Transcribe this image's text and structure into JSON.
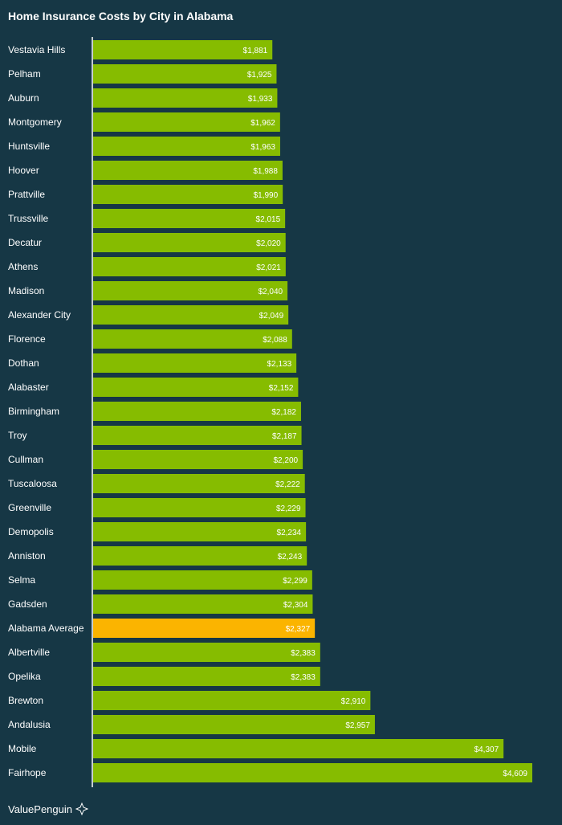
{
  "chart_data": {
    "type": "bar",
    "orientation": "horizontal",
    "title": "Home Insurance Costs by City in Alabama",
    "categories": [
      "Vestavia Hills",
      "Pelham",
      "Auburn",
      "Montgomery",
      "Huntsville",
      "Hoover",
      "Prattville",
      "Trussville",
      "Decatur",
      "Athens",
      "Madison",
      "Alexander City",
      "Florence",
      "Dothan",
      "Alabaster",
      "Birmingham",
      "Troy",
      "Cullman",
      "Tuscaloosa",
      "Greenville",
      "Demopolis",
      "Anniston",
      "Selma",
      "Gadsden",
      "Alabama Average",
      "Albertville",
      "Opelika",
      "Brewton",
      "Andalusia",
      "Mobile",
      "Fairhope"
    ],
    "values": [
      1881,
      1925,
      1933,
      1962,
      1963,
      1988,
      1990,
      2015,
      2020,
      2021,
      2040,
      2049,
      2088,
      2133,
      2152,
      2182,
      2187,
      2200,
      2222,
      2229,
      2234,
      2243,
      2299,
      2304,
      2327,
      2383,
      2383,
      2910,
      2957,
      4307,
      4609
    ],
    "value_labels": [
      "$1,881",
      "$1,925",
      "$1,933",
      "$1,962",
      "$1,963",
      "$1,988",
      "$1,990",
      "$2,015",
      "$2,020",
      "$2,021",
      "$2,040",
      "$2,049",
      "$2,088",
      "$2,133",
      "$2,152",
      "$2,182",
      "$2,187",
      "$2,200",
      "$2,222",
      "$2,229",
      "$2,234",
      "$2,243",
      "$2,299",
      "$2,304",
      "$2,327",
      "$2,383",
      "$2,383",
      "$2,910",
      "$2,957",
      "$4,307",
      "$4,609"
    ],
    "highlight_category": "Alabama Average",
    "xlim": [
      0,
      4609
    ],
    "grid": false,
    "colors": {
      "bar": "#86bc00",
      "highlight": "#fbb400",
      "background": "#163745",
      "axis": "#ffffff",
      "text": "#ffffff"
    }
  },
  "footer": {
    "brand": "ValuePenguin",
    "icon": "penguin-logo-icon"
  }
}
